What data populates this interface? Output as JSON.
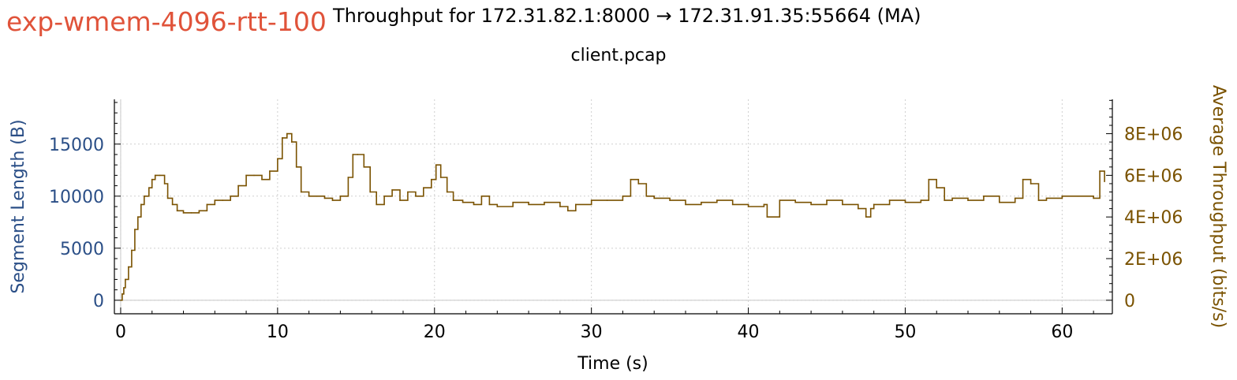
{
  "header": {
    "experiment": "exp-wmem-4096-rtt-100",
    "title": "Throughput for 172.31.82.1:8000 → 172.31.91.35:55664 (MA)",
    "subtitle": "client.pcap"
  },
  "colors": {
    "experiment": "#e0533a",
    "left_axis": "#2b4f87",
    "right_axis": "#7a5200",
    "series": "#7a5200",
    "grid": "#cfcfcf"
  },
  "chart_data": {
    "type": "line",
    "xlabel": "Time (s)",
    "ylabel_left": "Segment Length (B)",
    "ylabel_right": "Average Throughput (bits/s)",
    "xlim": [
      -0.4,
      63.2
    ],
    "ylim_left": [
      -1300,
      19300
    ],
    "ylim_right": [
      -650000,
      9650000
    ],
    "x_ticks": [
      0,
      10,
      20,
      30,
      40,
      50,
      60
    ],
    "y_left_ticks": [
      0,
      5000,
      10000,
      15000
    ],
    "y_left_tick_labels": [
      "0",
      "5000",
      "10000",
      "15000"
    ],
    "y_right_ticks": [
      0,
      2000000,
      4000000,
      6000000,
      8000000
    ],
    "y_right_tick_labels": [
      "0",
      "2E+06",
      "4E+06",
      "6E+06",
      "8E+06"
    ],
    "grid": true,
    "series": [
      {
        "axis": "right",
        "x": [
          0,
          0.1,
          0.2,
          0.3,
          0.5,
          0.7,
          0.9,
          1.1,
          1.3,
          1.5,
          1.8,
          2.0,
          2.2,
          2.5,
          2.8,
          3.0,
          3.3,
          3.6,
          4.0,
          4.5,
          5.0,
          5.5,
          6.0,
          6.5,
          7.0,
          7.5,
          8.0,
          8.5,
          9.0,
          9.5,
          10.0,
          10.3,
          10.6,
          10.9,
          11.2,
          11.5,
          12.0,
          12.5,
          13.0,
          13.5,
          14.0,
          14.5,
          14.8,
          15.1,
          15.5,
          15.9,
          16.3,
          16.8,
          17.3,
          17.8,
          18.3,
          18.8,
          19.3,
          19.8,
          20.1,
          20.4,
          20.8,
          21.2,
          21.8,
          22.5,
          23.0,
          23.5,
          24.0,
          25.0,
          26.0,
          27.0,
          28.0,
          28.5,
          29.0,
          30.0,
          31.0,
          32.0,
          32.5,
          33.0,
          33.5,
          34.0,
          35.0,
          36.0,
          37.0,
          38.0,
          39.0,
          40.0,
          41.0,
          41.2,
          42.0,
          43.0,
          44.0,
          45.0,
          46.0,
          47.0,
          47.5,
          47.8,
          48.0,
          49.0,
          50.0,
          51.0,
          51.5,
          52.0,
          52.5,
          53.0,
          54.0,
          55.0,
          56.0,
          57.0,
          57.5,
          58.0,
          58.5,
          59.0,
          60.0,
          61.0,
          62.0,
          62.4,
          62.7
        ],
        "y": [
          0,
          300000,
          600000,
          1000000,
          1600000,
          2400000,
          3400000,
          4000000,
          4600000,
          5000000,
          5400000,
          5800000,
          6000000,
          6000000,
          5600000,
          4900000,
          4600000,
          4300000,
          4200000,
          4200000,
          4300000,
          4600000,
          4800000,
          4800000,
          5000000,
          5500000,
          6000000,
          6000000,
          5800000,
          6200000,
          6800000,
          7800000,
          8000000,
          7600000,
          6400000,
          5200000,
          5000000,
          5000000,
          4900000,
          4800000,
          5000000,
          5900000,
          7000000,
          7000000,
          6400000,
          5200000,
          4600000,
          5000000,
          5300000,
          4800000,
          5200000,
          5000000,
          5400000,
          5800000,
          6500000,
          5900000,
          5200000,
          4800000,
          4700000,
          4600000,
          5000000,
          4600000,
          4500000,
          4700000,
          4600000,
          4700000,
          4500000,
          4300000,
          4600000,
          4800000,
          4800000,
          5000000,
          5800000,
          5600000,
          5000000,
          4900000,
          4800000,
          4600000,
          4700000,
          4800000,
          4600000,
          4500000,
          4600000,
          4000000,
          4800000,
          4700000,
          4600000,
          4800000,
          4600000,
          4400000,
          4000000,
          4400000,
          4600000,
          4800000,
          4700000,
          4800000,
          5800000,
          5400000,
          4800000,
          4900000,
          4800000,
          5000000,
          4700000,
          4900000,
          5800000,
          5600000,
          4800000,
          4900000,
          5000000,
          5000000,
          4900000,
          6200000,
          5700000
        ]
      }
    ]
  }
}
